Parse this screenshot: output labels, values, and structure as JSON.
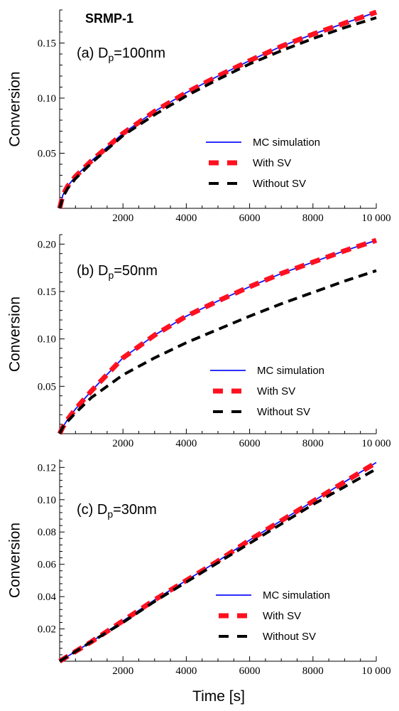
{
  "figure": {
    "title": "SRMP-1",
    "xlabel": "Time [s]",
    "ylabel": "Conversion",
    "colors": {
      "mc": "#1010ff",
      "with_sv": "#ff1020",
      "without_sv": "#000000"
    }
  },
  "chart_data": [
    {
      "type": "line",
      "panel_label": "(a) D",
      "panel_sub": "p",
      "panel_value": "=100nm",
      "xlim": [
        0,
        10000
      ],
      "ylim": [
        0,
        0.18
      ],
      "xticks": [
        2000,
        4000,
        6000,
        8000,
        10000
      ],
      "xtick_labels": [
        "2000",
        "4000",
        "6000",
        "8000",
        "10 000"
      ],
      "yticks": [
        0.05,
        0.1,
        0.15
      ],
      "ytick_labels": [
        "0.05",
        "0.10",
        "0.15"
      ],
      "legend": [
        "MC simulation",
        "With SV",
        "Without SV"
      ],
      "legend_position": "center-right",
      "series": [
        {
          "name": "MC simulation",
          "x": [
            0,
            100,
            250,
            500,
            1000,
            2000,
            3000,
            4000,
            5000,
            6000,
            7000,
            8000,
            9000,
            10000
          ],
          "y": [
            0,
            0.012,
            0.02,
            0.029,
            0.043,
            0.068,
            0.088,
            0.105,
            0.12,
            0.134,
            0.147,
            0.158,
            0.168,
            0.178
          ]
        },
        {
          "name": "With SV",
          "x": [
            0,
            100,
            250,
            500,
            1000,
            2000,
            3000,
            4000,
            5000,
            6000,
            7000,
            8000,
            9000,
            10000
          ],
          "y": [
            0,
            0.012,
            0.02,
            0.029,
            0.043,
            0.068,
            0.088,
            0.105,
            0.12,
            0.134,
            0.147,
            0.158,
            0.168,
            0.178
          ]
        },
        {
          "name": "Without SV",
          "x": [
            0,
            100,
            250,
            500,
            1000,
            2000,
            3000,
            4000,
            5000,
            6000,
            7000,
            8000,
            9000,
            10000
          ],
          "y": [
            0,
            0.01,
            0.018,
            0.027,
            0.041,
            0.066,
            0.085,
            0.102,
            0.117,
            0.131,
            0.143,
            0.154,
            0.164,
            0.173
          ]
        }
      ]
    },
    {
      "type": "line",
      "panel_label": "(b) D",
      "panel_sub": "p",
      "panel_value": "=50nm",
      "xlim": [
        0,
        10000
      ],
      "ylim": [
        0,
        0.21
      ],
      "xticks": [
        2000,
        4000,
        6000,
        8000,
        10000
      ],
      "xtick_labels": [
        "2000",
        "4000",
        "6000",
        "8000",
        "10 000"
      ],
      "yticks": [
        0.05,
        0.1,
        0.15,
        0.2
      ],
      "ytick_labels": [
        "0.05",
        "0.10",
        "0.15",
        "0.20"
      ],
      "legend": [
        "MC simulation",
        "With SV",
        "Without SV"
      ],
      "legend_position": "bottom-right",
      "series": [
        {
          "name": "MC simulation",
          "x": [
            0,
            100,
            250,
            500,
            1000,
            2000,
            3000,
            4000,
            5000,
            6000,
            7000,
            8000,
            9000,
            10000
          ],
          "y": [
            0,
            0.007,
            0.015,
            0.026,
            0.045,
            0.08,
            0.104,
            0.124,
            0.14,
            0.155,
            0.169,
            0.181,
            0.193,
            0.204
          ]
        },
        {
          "name": "With SV",
          "x": [
            0,
            100,
            250,
            500,
            1000,
            2000,
            3000,
            4000,
            5000,
            6000,
            7000,
            8000,
            9000,
            10000
          ],
          "y": [
            0,
            0.007,
            0.015,
            0.026,
            0.045,
            0.08,
            0.104,
            0.124,
            0.14,
            0.155,
            0.169,
            0.181,
            0.193,
            0.204
          ]
        },
        {
          "name": "Without SV",
          "x": [
            0,
            100,
            250,
            500,
            1000,
            2000,
            3000,
            4000,
            5000,
            6000,
            7000,
            8000,
            9000,
            10000
          ],
          "y": [
            0,
            0.007,
            0.013,
            0.022,
            0.038,
            0.062,
            0.08,
            0.096,
            0.11,
            0.124,
            0.137,
            0.149,
            0.161,
            0.172
          ]
        }
      ]
    },
    {
      "type": "line",
      "panel_label": "(c) D",
      "panel_sub": "p",
      "panel_value": "=30nm",
      "xlim": [
        0,
        10000
      ],
      "ylim": [
        0,
        0.125
      ],
      "xticks": [
        2000,
        4000,
        6000,
        8000,
        10000
      ],
      "xtick_labels": [
        "2000",
        "4000",
        "6000",
        "8000",
        "10 000"
      ],
      "yticks": [
        0.02,
        0.04,
        0.06,
        0.08,
        0.1,
        0.12
      ],
      "ytick_labels": [
        "0.02",
        "0.04",
        "0.06",
        "0.08",
        "0.10",
        "0.12"
      ],
      "legend": [
        "MC simulation",
        "With SV",
        "Without SV"
      ],
      "legend_position": "bottom-right",
      "series": [
        {
          "name": "MC simulation",
          "x": [
            0,
            1000,
            2000,
            3000,
            4000,
            5000,
            6000,
            7000,
            8000,
            9000,
            10000
          ],
          "y": [
            0,
            0.012,
            0.025,
            0.038,
            0.05,
            0.062,
            0.075,
            0.087,
            0.099,
            0.111,
            0.123
          ]
        },
        {
          "name": "With SV",
          "x": [
            0,
            1000,
            2000,
            3000,
            4000,
            5000,
            6000,
            7000,
            8000,
            9000,
            10000
          ],
          "y": [
            0,
            0.012,
            0.025,
            0.038,
            0.05,
            0.062,
            0.075,
            0.087,
            0.099,
            0.111,
            0.123
          ]
        },
        {
          "name": "Without SV",
          "x": [
            0,
            1000,
            2000,
            3000,
            4000,
            5000,
            6000,
            7000,
            8000,
            9000,
            10000
          ],
          "y": [
            0,
            0.012,
            0.024,
            0.037,
            0.049,
            0.061,
            0.073,
            0.085,
            0.097,
            0.108,
            0.119
          ]
        }
      ]
    }
  ]
}
